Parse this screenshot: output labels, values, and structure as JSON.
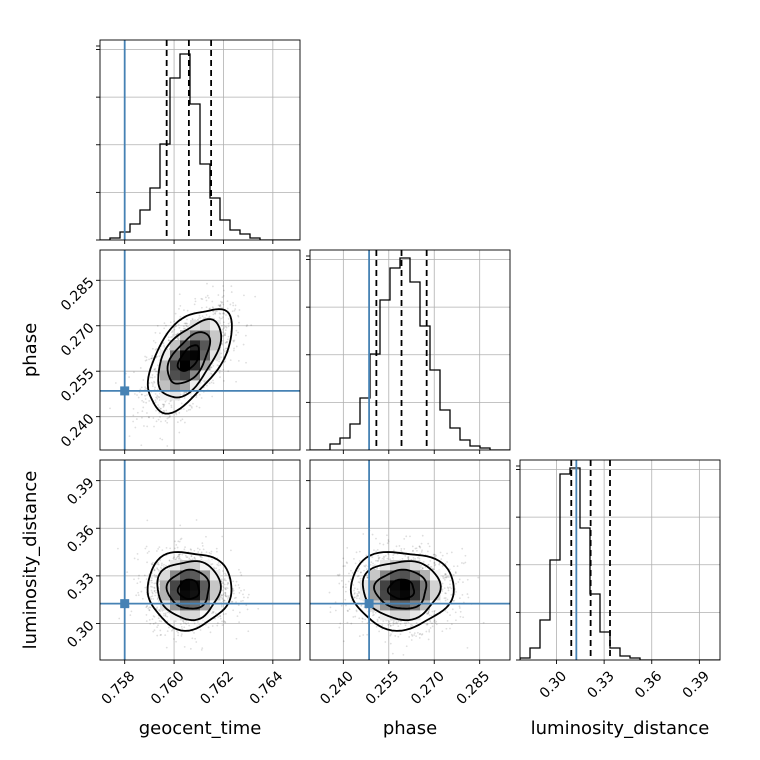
{
  "chart_data": {
    "type": "corner",
    "parameters": [
      {
        "key": "geocent_time",
        "label": "geocent_time",
        "mean": 0.7606,
        "std": 0.00085,
        "truth": 0.758,
        "range": [
          0.757,
          0.7651
        ],
        "ticks": [
          0.758,
          0.76,
          0.762,
          0.764
        ],
        "tick_labels": [
          "0.758",
          "0.760",
          "0.762",
          "0.764"
        ],
        "quantiles": [
          0.7597,
          0.7606,
          0.7615
        ]
      },
      {
        "key": "phase",
        "label": "phase",
        "mean": 0.2592,
        "std": 0.0085,
        "truth": 0.2485,
        "range": [
          0.229,
          0.295
        ],
        "ticks": [
          0.24,
          0.255,
          0.27,
          0.285
        ],
        "tick_labels": [
          "0.240",
          "0.255",
          "0.270",
          "0.285"
        ],
        "quantiles": [
          0.2509,
          0.2592,
          0.2675
        ]
      },
      {
        "key": "luminosity_distance",
        "label": "luminosity_distance",
        "mean": 0.3215,
        "std": 0.0122,
        "truth": 0.3125,
        "range": [
          0.277,
          0.403
        ],
        "ticks": [
          0.3,
          0.33,
          0.36,
          0.39
        ],
        "tick_labels": [
          "0.30",
          "0.33",
          "0.36",
          "0.39"
        ],
        "quantiles": [
          0.3093,
          0.3215,
          0.3337
        ]
      }
    ],
    "correlations": [
      [
        1,
        0.55,
        0
      ],
      [
        0.55,
        1,
        0
      ],
      [
        0,
        0,
        1
      ]
    ],
    "histogram_bins": 20,
    "histograms": [
      [
        0,
        0.01,
        0.04,
        0.08,
        0.15,
        0.26,
        0.48,
        0.81,
        0.93,
        0.68,
        0.38,
        0.21,
        0.1,
        0.05,
        0.03,
        0.01,
        0,
        0,
        0,
        0
      ],
      [
        0,
        0,
        0.03,
        0.06,
        0.13,
        0.26,
        0.48,
        0.75,
        0.91,
        0.96,
        0.84,
        0.62,
        0.4,
        0.2,
        0.11,
        0.05,
        0.02,
        0.01,
        0,
        0
      ],
      [
        0.01,
        0.06,
        0.2,
        0.5,
        0.93,
        0.96,
        0.66,
        0.33,
        0.14,
        0.06,
        0.02,
        0.01,
        0,
        0,
        0,
        0,
        0,
        0,
        0,
        0
      ]
    ],
    "grid": true,
    "truth_color": "#4682b4"
  }
}
